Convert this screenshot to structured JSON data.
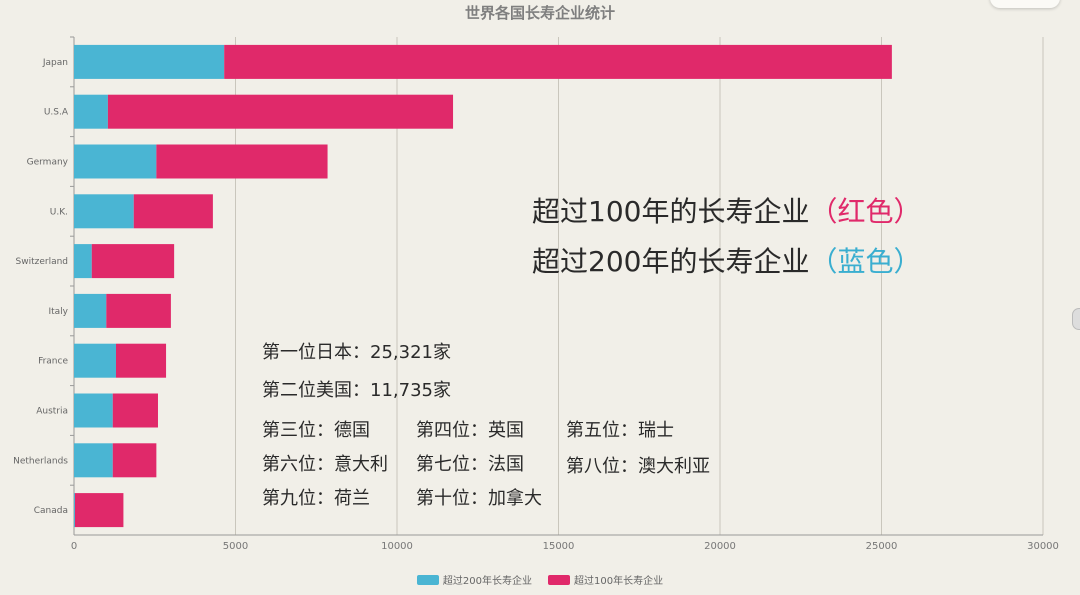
{
  "chart_data": {
    "type": "bar",
    "orientation": "horizontal",
    "stacked": true,
    "title": "世界各国长寿企业统计",
    "categories": [
      "Japan",
      "U.S.A",
      "Germany",
      "U.K.",
      "Switzerland",
      "Italy",
      "France",
      "Austria",
      "Netherlands",
      "Canada"
    ],
    "series": [
      {
        "name": "超过200年长寿企业",
        "color": "#4ab5d3",
        "values": [
          4650,
          1050,
          2550,
          1850,
          550,
          1000,
          1300,
          1200,
          1200,
          30
        ]
      },
      {
        "name": "超过100年长寿企业",
        "color": "#e0296a",
        "values": [
          20671,
          10685,
          5300,
          2450,
          2550,
          2000,
          1550,
          1400,
          1350,
          1500
        ]
      }
    ],
    "xlim": [
      0,
      30000
    ],
    "xticks": [
      "0",
      "5000",
      "10000",
      "15000",
      "20000",
      "25000",
      "30000"
    ],
    "grid": true,
    "legend_position": "bottom-center"
  },
  "annotations": {
    "line1": {
      "prefix": "超过100年的长寿企业",
      "paren": "（红色）",
      "color": "#e0296a"
    },
    "line2": {
      "prefix": "超过200年的长寿企业",
      "paren": "（蓝色）",
      "color": "#3aaed0"
    },
    "rank1": "第一位日本：25,321家",
    "rank2": "第二位美国：11,735家",
    "rank3": "第三位：德国",
    "rank4": "第四位：英国",
    "rank5": "第五位：瑞士",
    "rank6": "第六位：意大利",
    "rank7": "第七位：法国",
    "rank8": "第八位：澳大利亚",
    "rank9": "第九位：荷兰",
    "rank10": "第十位：加拿大"
  }
}
